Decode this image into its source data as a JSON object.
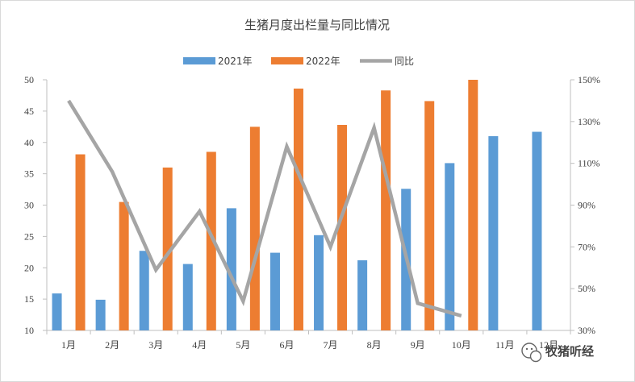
{
  "chart_data": {
    "type": "bar",
    "title": "生猪月度出栏量与同比情况",
    "categories": [
      "1月",
      "2月",
      "3月",
      "4月",
      "5月",
      "6月",
      "7月",
      "8月",
      "9月",
      "10月",
      "11月",
      "12月"
    ],
    "series": [
      {
        "name": "2021年",
        "type": "bar",
        "axis": "left",
        "color": "#5B9BD5",
        "values": [
          15.9,
          14.9,
          22.7,
          20.6,
          29.5,
          22.4,
          25.2,
          21.2,
          32.6,
          36.7,
          41.0,
          41.7
        ]
      },
      {
        "name": "2022年",
        "type": "bar",
        "axis": "left",
        "color": "#ED7D31",
        "values": [
          38.1,
          30.5,
          36.0,
          38.5,
          42.5,
          48.6,
          42.8,
          48.3,
          46.6,
          50.0,
          null,
          null
        ]
      },
      {
        "name": "同比",
        "type": "line",
        "axis": "right",
        "color": "#A5A5A5",
        "values": [
          140,
          106,
          59,
          87,
          44,
          118,
          70,
          127,
          43,
          37,
          null,
          null
        ]
      }
    ],
    "ylim": [
      10,
      50
    ],
    "yticks": [
      "10",
      "15",
      "20",
      "25",
      "30",
      "35",
      "40",
      "45",
      "50"
    ],
    "y2lim": [
      30,
      150
    ],
    "y2ticks": [
      "30%",
      "50%",
      "70%",
      "90%",
      "110%",
      "130%",
      "150%"
    ],
    "legend_position": "top",
    "grid": false
  },
  "watermark": {
    "text": "牧猪听经",
    "icon": "wechat-icon"
  }
}
